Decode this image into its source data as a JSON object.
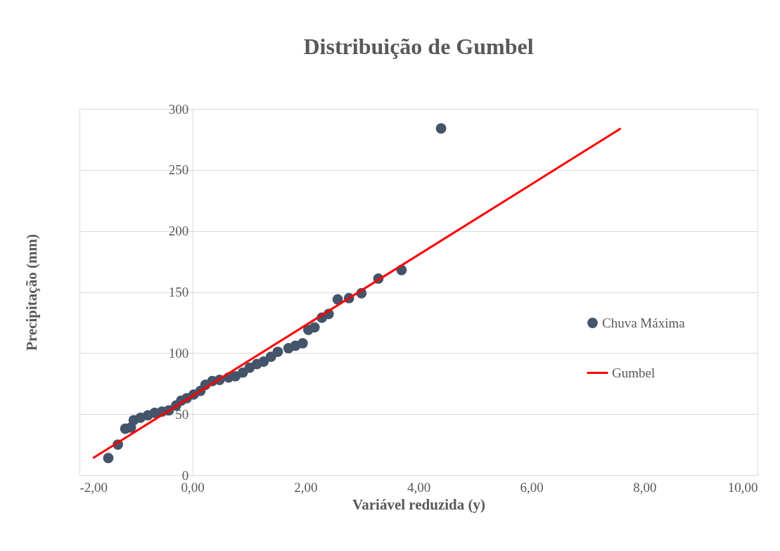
{
  "chart_data": {
    "type": "scatter",
    "title": "Distribuição de Gumbel",
    "xlabel": "Variável reduzida (y)",
    "ylabel": "Precipitação (mm)",
    "xlim": [
      -2,
      10
    ],
    "ylim": [
      0,
      300
    ],
    "xticks": [
      {
        "value": -2,
        "label": "-2,00"
      },
      {
        "value": 0,
        "label": "0,00"
      },
      {
        "value": 2,
        "label": "2,00"
      },
      {
        "value": 4,
        "label": "4,00"
      },
      {
        "value": 6,
        "label": "6,00"
      },
      {
        "value": 8,
        "label": "8,00"
      },
      {
        "value": 10,
        "label": "10,00"
      }
    ],
    "yticks": [
      0,
      50,
      100,
      150,
      200,
      250,
      300
    ],
    "grid": "y",
    "legend": "right",
    "series": [
      {
        "name": "Chuva Máxima",
        "type": "scatter",
        "marker": "circle",
        "color": "#44546a",
        "x": [
          -1.49,
          -1.32,
          -1.19,
          -1.09,
          -1.04,
          -0.92,
          -0.79,
          -0.67,
          -0.54,
          -0.42,
          -0.29,
          -0.2,
          -0.1,
          0.02,
          0.14,
          0.23,
          0.35,
          0.48,
          0.64,
          0.76,
          0.89,
          1.01,
          1.14,
          1.26,
          1.39,
          1.51,
          1.7,
          1.82,
          1.95,
          2.05,
          2.16,
          2.29,
          2.41,
          2.57,
          2.77,
          2.99,
          3.29,
          3.7,
          4.4
        ],
        "values": [
          14,
          25,
          38,
          39,
          45,
          47,
          49,
          51,
          52,
          53,
          57,
          61,
          63,
          66,
          69,
          74,
          77,
          78,
          80,
          81,
          84,
          88,
          91,
          93,
          97,
          101,
          104,
          106,
          108,
          119,
          121,
          129,
          132,
          144,
          145,
          149,
          161,
          168,
          284
        ]
      },
      {
        "name": "Gumbel",
        "type": "line",
        "color": "#ff0000",
        "x": [
          -1.76,
          7.58
        ],
        "values": [
          14,
          284
        ]
      }
    ]
  }
}
